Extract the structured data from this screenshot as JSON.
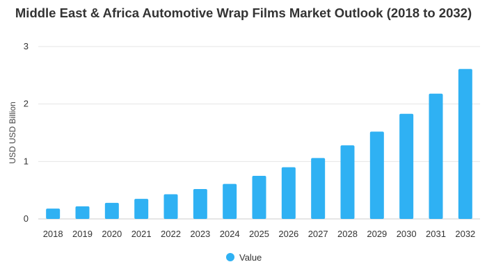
{
  "chart_data": {
    "type": "bar",
    "title": "Middle East & Africa Automotive Wrap Films Market Outlook (2018 to 2032)",
    "ylabel": "USD USD Billion",
    "xlabel": "",
    "categories": [
      "2018",
      "2019",
      "2020",
      "2021",
      "2022",
      "2023",
      "2024",
      "2025",
      "2026",
      "2027",
      "2028",
      "2029",
      "2030",
      "2031",
      "2032"
    ],
    "series": [
      {
        "name": "Value",
        "values": [
          0.18,
          0.22,
          0.28,
          0.35,
          0.43,
          0.52,
          0.61,
          0.75,
          0.9,
          1.06,
          1.28,
          1.52,
          1.83,
          2.18,
          2.61
        ]
      }
    ],
    "ylim": [
      0,
      3
    ],
    "yticks": [
      0,
      1,
      2,
      3
    ],
    "grid": true,
    "legend_position": "bottom",
    "colors": {
      "bar": "#2fb1f3",
      "grid": "#e6e6e6",
      "axis": "#cccccc"
    }
  }
}
